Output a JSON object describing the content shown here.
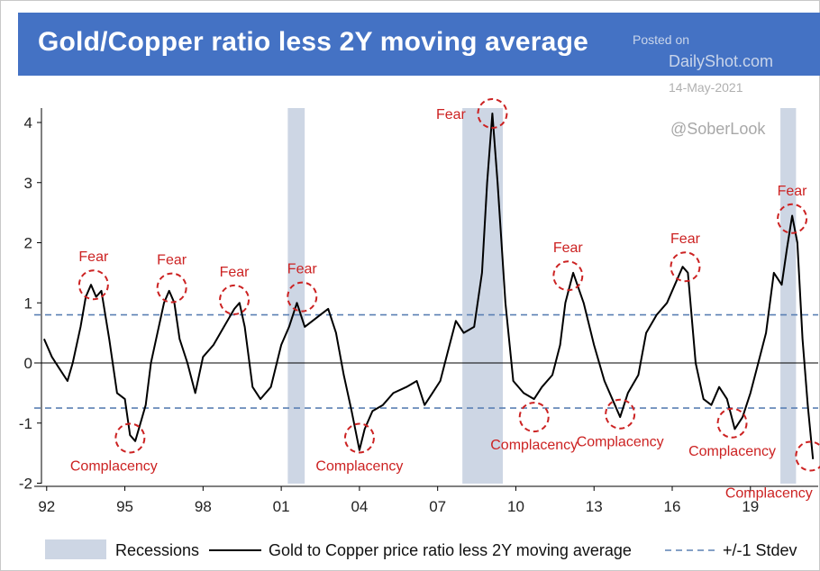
{
  "header": {
    "title": "Gold/Copper ratio less 2Y moving average",
    "posted_on": "Posted on",
    "site": "DailyShot.com",
    "date": "14-May-2021",
    "handle": "@SoberLook"
  },
  "colors": {
    "title_bg": "#4472c4",
    "line": "#000000",
    "recession": "#cdd6e4",
    "stdev": "#5b80b4",
    "annotation": "#cc2222"
  },
  "chart_data": {
    "type": "line",
    "title": "Gold/Copper ratio less 2Y moving average",
    "xlabel": "",
    "ylabel": "",
    "xlim": [
      1991.8,
      2021.6
    ],
    "ylim": [
      -2,
      4.2
    ],
    "x_ticks": [
      {
        "value": 1992,
        "label": "92"
      },
      {
        "value": 1995,
        "label": "95"
      },
      {
        "value": 1998,
        "label": "98"
      },
      {
        "value": 2001,
        "label": "01"
      },
      {
        "value": 2004,
        "label": "04"
      },
      {
        "value": 2007,
        "label": "07"
      },
      {
        "value": 2010,
        "label": "10"
      },
      {
        "value": 2013,
        "label": "13"
      },
      {
        "value": 2016,
        "label": "16"
      },
      {
        "value": 2019,
        "label": "19"
      }
    ],
    "y_ticks": [
      {
        "value": 4,
        "label": "4"
      },
      {
        "value": 3,
        "label": "3"
      },
      {
        "value": 2,
        "label": "2"
      },
      {
        "value": 1,
        "label": "1"
      },
      {
        "value": 0,
        "label": "0"
      },
      {
        "value": -1,
        "label": "-1"
      },
      {
        "value": -2,
        "label": "-2"
      }
    ],
    "stdev_levels": [
      0.8,
      -0.75
    ],
    "recessions": [
      [
        2001.25,
        2001.9
      ],
      [
        2007.95,
        2009.5
      ],
      [
        2020.15,
        2020.75
      ]
    ],
    "series": [
      {
        "name": "Gold to Copper price ratio less 2Y moving average",
        "x": [
          1991.9,
          1992.2,
          1992.5,
          1992.8,
          1993.0,
          1993.3,
          1993.5,
          1993.7,
          1993.9,
          1994.1,
          1994.4,
          1994.7,
          1995.0,
          1995.2,
          1995.4,
          1995.6,
          1995.8,
          1996.0,
          1996.2,
          1996.5,
          1996.7,
          1996.9,
          1997.1,
          1997.4,
          1997.7,
          1998.0,
          1998.4,
          1998.8,
          1999.2,
          1999.4,
          1999.6,
          1999.9,
          2000.2,
          2000.6,
          2001.0,
          2001.3,
          2001.6,
          2001.9,
          2002.2,
          2002.5,
          2002.8,
          2003.1,
          2003.4,
          2003.7,
          2004.0,
          2004.2,
          2004.5,
          2004.9,
          2005.3,
          2005.8,
          2006.2,
          2006.5,
          2006.8,
          2007.1,
          2007.4,
          2007.7,
          2008.0,
          2008.4,
          2008.7,
          2008.9,
          2009.1,
          2009.3,
          2009.6,
          2009.9,
          2010.3,
          2010.7,
          2011.0,
          2011.4,
          2011.7,
          2011.9,
          2012.2,
          2012.6,
          2013.0,
          2013.4,
          2013.8,
          2014.0,
          2014.3,
          2014.7,
          2015.0,
          2015.4,
          2015.8,
          2016.1,
          2016.4,
          2016.6,
          2016.9,
          2017.2,
          2017.5,
          2017.8,
          2018.1,
          2018.4,
          2018.7,
          2019.0,
          2019.3,
          2019.6,
          2019.9,
          2020.2,
          2020.4,
          2020.6,
          2020.8,
          2021.0,
          2021.2,
          2021.4
        ],
        "y": [
          0.4,
          0.1,
          -0.1,
          -0.3,
          0.0,
          0.6,
          1.1,
          1.3,
          1.1,
          1.2,
          0.4,
          -0.5,
          -0.6,
          -1.2,
          -1.3,
          -1.0,
          -0.7,
          0.0,
          0.4,
          1.0,
          1.2,
          1.0,
          0.4,
          0.0,
          -0.5,
          0.1,
          0.3,
          0.6,
          0.9,
          1.0,
          0.6,
          -0.4,
          -0.6,
          -0.4,
          0.3,
          0.6,
          1.0,
          0.6,
          0.7,
          0.8,
          0.9,
          0.5,
          -0.2,
          -0.8,
          -1.45,
          -1.1,
          -0.8,
          -0.7,
          -0.5,
          -0.4,
          -0.3,
          -0.7,
          -0.5,
          -0.3,
          0.2,
          0.7,
          0.5,
          0.6,
          1.5,
          3.0,
          4.15,
          3.0,
          1.0,
          -0.3,
          -0.5,
          -0.6,
          -0.4,
          -0.2,
          0.3,
          1.0,
          1.5,
          1.0,
          0.3,
          -0.3,
          -0.7,
          -0.9,
          -0.5,
          -0.2,
          0.5,
          0.8,
          1.0,
          1.3,
          1.6,
          1.5,
          0.0,
          -0.6,
          -0.7,
          -0.4,
          -0.6,
          -1.1,
          -0.9,
          -0.5,
          0.0,
          0.5,
          1.5,
          1.3,
          1.9,
          2.45,
          2.0,
          0.4,
          -0.7,
          -1.6
        ]
      }
    ],
    "annotations": [
      {
        "label": "Fear",
        "x": 1993.8,
        "y": 1.3
      },
      {
        "label": "Fear",
        "x": 1996.8,
        "y": 1.25
      },
      {
        "label": "Fear",
        "x": 1999.2,
        "y": 1.05
      },
      {
        "label": "Fear",
        "x": 2001.8,
        "y": 1.1
      },
      {
        "label": "Fear",
        "x": 2009.1,
        "y": 4.15
      },
      {
        "label": "Fear",
        "x": 2012.0,
        "y": 1.45
      },
      {
        "label": "Fear",
        "x": 2016.5,
        "y": 1.6
      },
      {
        "label": "Fear",
        "x": 2020.6,
        "y": 2.4
      },
      {
        "label": "Complacency",
        "x": 1995.2,
        "y": -1.25
      },
      {
        "label": "Complacency",
        "x": 2004.0,
        "y": -1.25
      },
      {
        "label": "Complacency",
        "x": 2010.7,
        "y": -0.9
      },
      {
        "label": "Complacency",
        "x": 2014.0,
        "y": -0.85
      },
      {
        "label": "Complacency",
        "x": 2018.3,
        "y": -1.0
      },
      {
        "label": "Complacency",
        "x": 2021.3,
        "y": -1.55
      }
    ],
    "legend": {
      "placement": "bottom",
      "entries": [
        {
          "label": "Recessions",
          "kind": "band"
        },
        {
          "label": "Gold to Copper price ratio less 2Y moving average",
          "kind": "line"
        },
        {
          "label": "+/-1 Stdev",
          "kind": "dashed"
        }
      ]
    }
  }
}
